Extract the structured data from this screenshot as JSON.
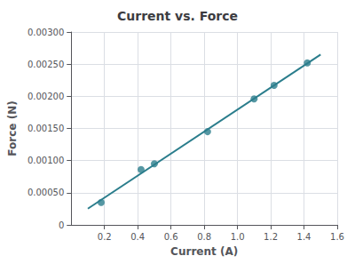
{
  "chart_data": {
    "type": "scatter",
    "title": "Current vs. Force",
    "x_label": "Current (A)",
    "y_label": "Force (N)",
    "series": [
      {
        "type": "scatter",
        "color": "#2a7d8c",
        "x": [
          0.18,
          0.42,
          0.5,
          0.82,
          1.1,
          1.22,
          1.42
        ],
        "values": [
          0.00035,
          0.00086,
          0.00095,
          0.00145,
          0.00196,
          0.00217,
          0.00252
        ]
      },
      {
        "type": "line",
        "color": "#2a7d8c",
        "x": [
          0.1,
          1.5
        ],
        "values": [
          0.000252251,
          0.00264982
        ]
      }
    ],
    "xlim": [
      0.0,
      1.6
    ],
    "ylim": [
      0,
      0.003
    ],
    "xticks": [
      0.2,
      0.4,
      0.6,
      0.8,
      {
        "value": 1.0,
        "label": "1.0"
      },
      1.2,
      1.4,
      1.6
    ],
    "yticks": [
      0,
      {
        "value": 0.0005,
        "label": "0.00050"
      },
      {
        "value": 0.001,
        "label": "0.00100"
      },
      {
        "value": 0.0015,
        "label": "0.00150"
      },
      {
        "value": 0.002,
        "label": "0.00200"
      },
      {
        "value": 0.0025,
        "label": "0.00250"
      },
      {
        "value": 0.003,
        "label": "0.00300"
      }
    ],
    "grid": true
  }
}
